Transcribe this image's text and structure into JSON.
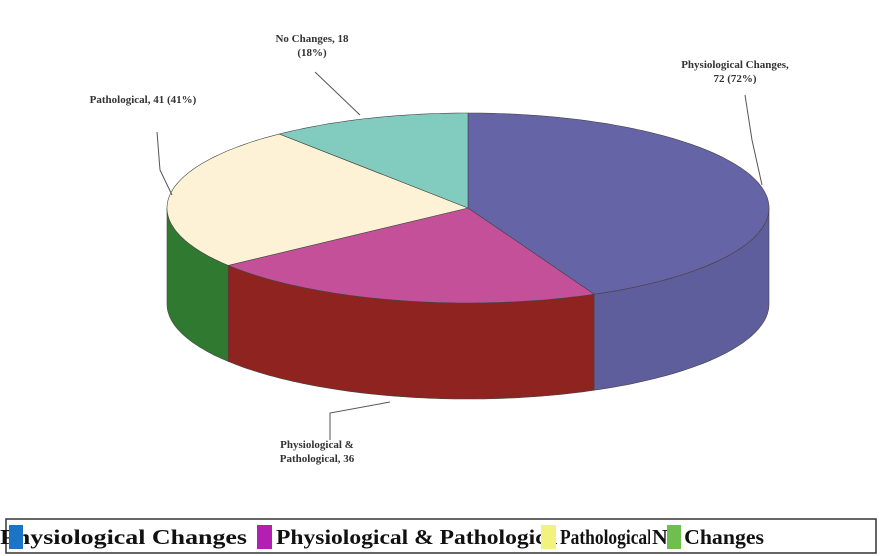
{
  "chart_data": {
    "type": "pie3d",
    "categories": [
      "Physiological Changes",
      "Physiological & Pathological",
      "Pathological",
      "No Changes"
    ],
    "values": [
      72,
      36,
      41,
      18
    ],
    "value_labels": [
      "Physiological Changes, 72 (72%)",
      "Physiological & Pathological, 36",
      "Pathological, 41 (41%)",
      "No Changes, 18 (18%)"
    ],
    "colors": [
      "#6464a6",
      "#c4509a",
      "#fdf1d6",
      "#82cbbf"
    ],
    "side_colors": [
      "#5e5e9c",
      "#8e2320",
      "#2f7a30",
      "#5fa79e"
    ],
    "legend_colors": [
      "#1b74c6",
      "#b21fb2",
      "#f2f27e",
      "#6fbf4f"
    ]
  }
}
